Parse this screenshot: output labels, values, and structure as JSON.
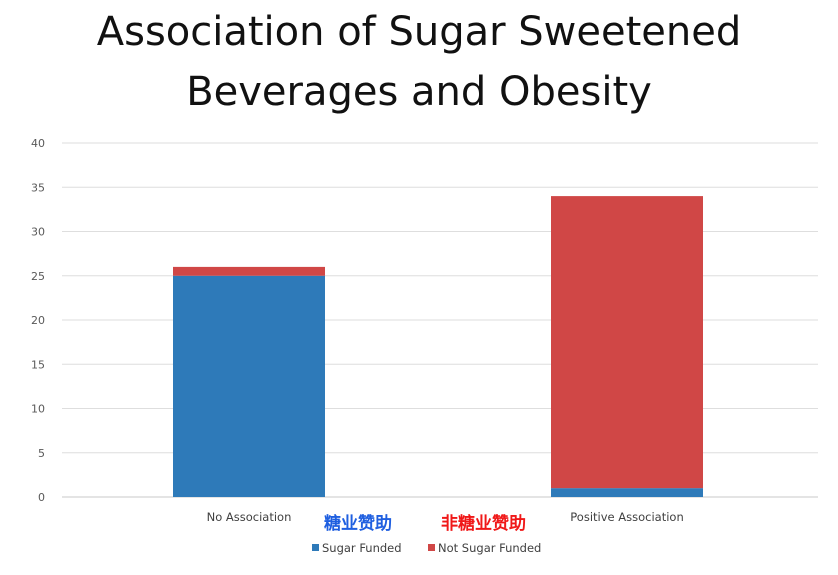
{
  "chart_data": {
    "type": "bar",
    "stacked": true,
    "title_lines": [
      "Association of Sugar Sweetened",
      "Beverages and Obesity"
    ],
    "categories": [
      "No Association",
      "Positive Association"
    ],
    "series": [
      {
        "name": "Sugar Funded",
        "values": [
          25,
          1
        ],
        "color": "#2E7AB9"
      },
      {
        "name": "Not Sugar Funded",
        "values": [
          1,
          33
        ],
        "color": "#D04746"
      }
    ],
    "ylim": [
      0,
      40
    ],
    "yticks": [
      0,
      5,
      10,
      15,
      20,
      25,
      30,
      35,
      40
    ],
    "grid": true,
    "legend_position": "bottom",
    "annotations": [
      {
        "text": "糖业赞助",
        "color": "#1F5FE0"
      },
      {
        "text": "非糖业赞助",
        "color": "#F01818"
      }
    ]
  }
}
